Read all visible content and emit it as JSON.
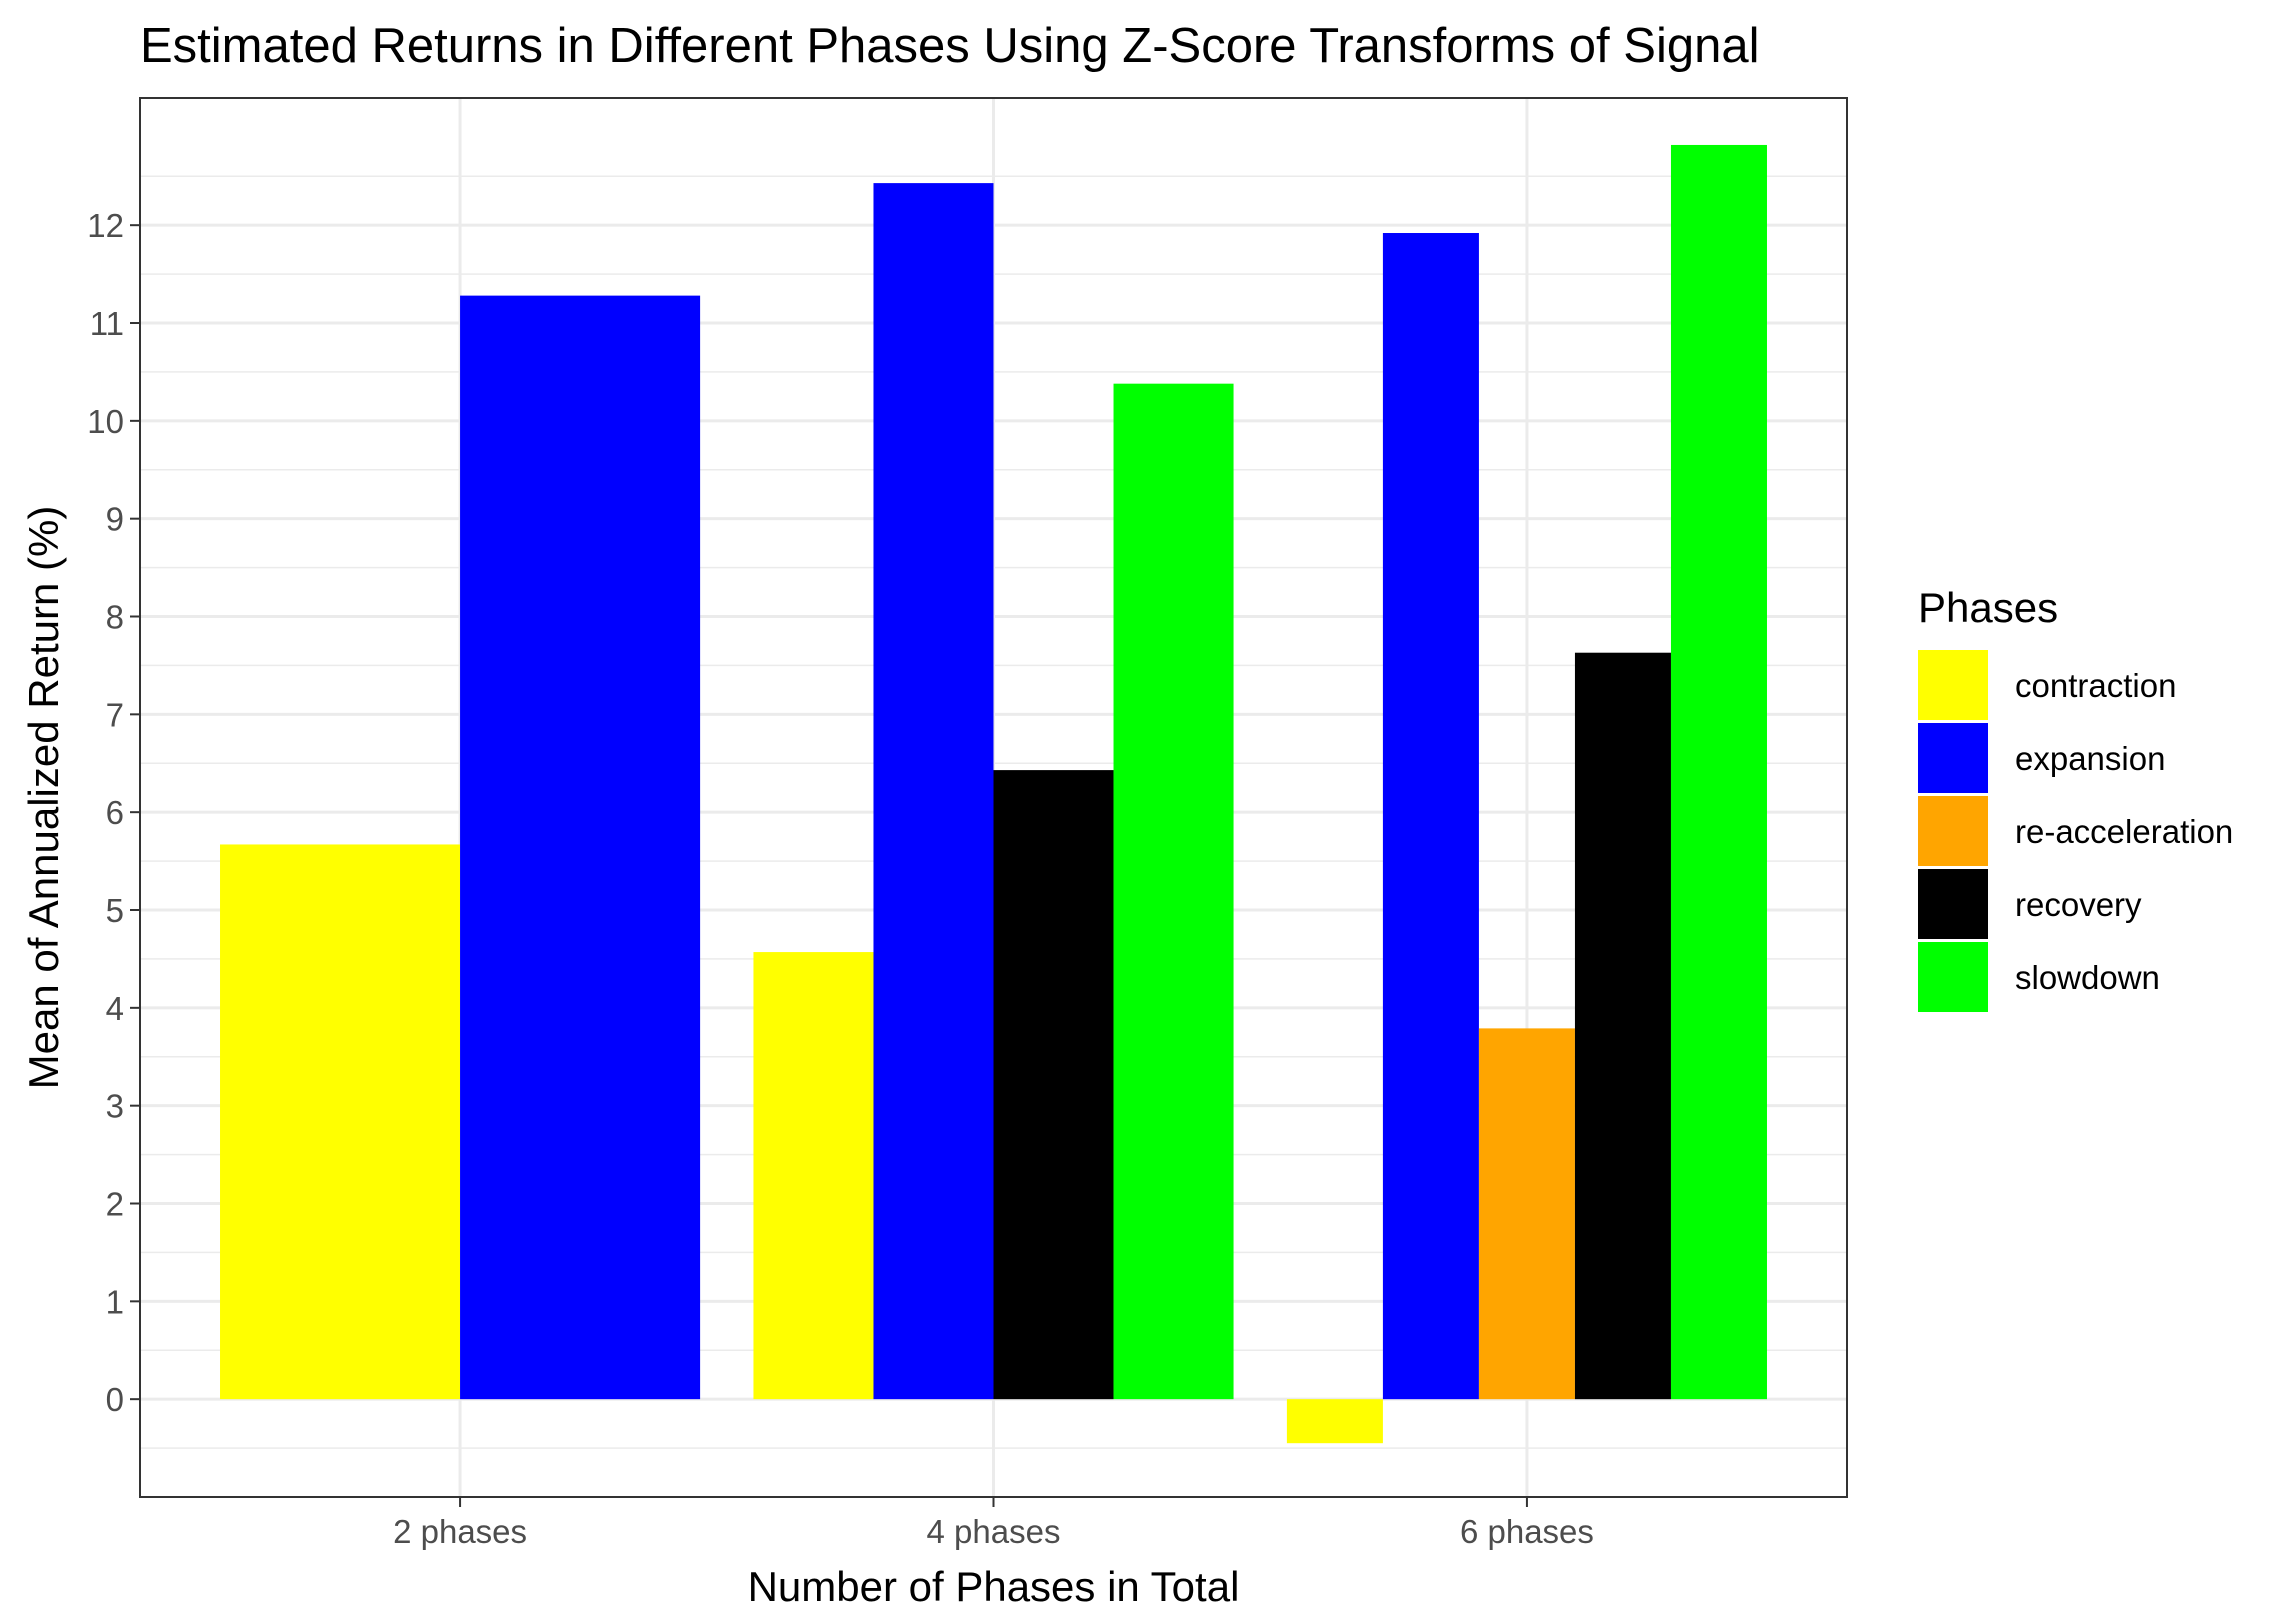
{
  "chart_data": {
    "type": "bar",
    "title": "Estimated Returns in Different Phases Using Z-Score Transforms of Signal",
    "xlabel": "Number of Phases in Total",
    "ylabel": "Mean of Annualized Return (%)",
    "categories": [
      "2 phases",
      "4 phases",
      "6 phases"
    ],
    "y_ticks": [
      "0",
      "1",
      "2",
      "3",
      "4",
      "5",
      "6",
      "7",
      "8",
      "9",
      "10",
      "11",
      "12"
    ],
    "ylim": [
      -1.0,
      13.3
    ],
    "grid": true,
    "legend": {
      "title": "Phases",
      "position": "right",
      "entries": [
        "contraction",
        "expansion",
        "re-acceleration",
        "recovery",
        "slowdown"
      ]
    },
    "series": [
      {
        "name": "contraction",
        "color": "#FFFF00",
        "values": [
          5.67,
          4.57,
          -0.45
        ]
      },
      {
        "name": "expansion",
        "color": "#0000FF",
        "values": [
          11.28,
          12.43,
          11.92
        ]
      },
      {
        "name": "re-acceleration",
        "color": "#FFA500",
        "values": [
          null,
          null,
          3.79
        ]
      },
      {
        "name": "recovery",
        "color": "#000000",
        "values": [
          null,
          6.43,
          7.63
        ]
      },
      {
        "name": "slowdown",
        "color": "#00FF00",
        "values": [
          null,
          10.38,
          12.82
        ]
      }
    ]
  }
}
